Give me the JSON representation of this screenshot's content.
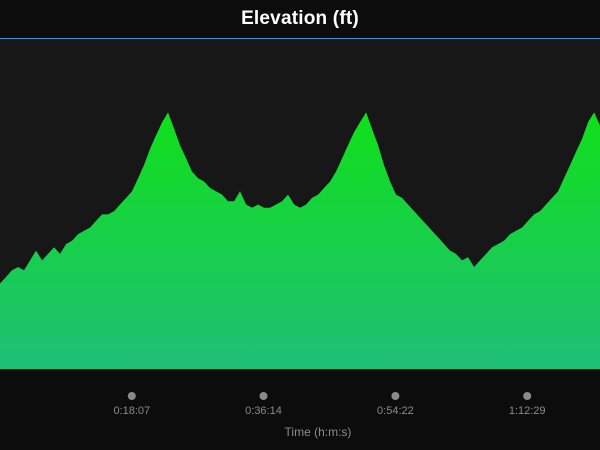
{
  "header": {
    "title": "Elevation (ft)"
  },
  "theme": {
    "fill_top": "#10e01a",
    "fill_bottom": "#1fbf78",
    "accent_line": "#3b8fd0",
    "background": "#0c0c0c",
    "plot_background": "#171717"
  },
  "chart_data": {
    "type": "area",
    "title": "Elevation (ft)",
    "xlabel": "Time (h:m:s)",
    "ylabel": "",
    "x_unit": "seconds",
    "xlim": [
      0,
      1000000000.0
    ],
    "xlim_seconds": [
      0,
      4950
    ],
    "ylim": [
      0,
      100
    ],
    "grid": false,
    "legend": "none",
    "xticks": [
      {
        "seconds": 1087,
        "label": "0:18:07"
      },
      {
        "seconds": 2174,
        "label": "0:36:14"
      },
      {
        "seconds": 3262,
        "label": "0:54:22"
      },
      {
        "seconds": 4349,
        "label": "1:12:29"
      }
    ],
    "x": [
      0,
      50,
      99,
      149,
      198,
      248,
      297,
      347,
      396,
      446,
      495,
      545,
      594,
      644,
      693,
      743,
      792,
      842,
      891,
      941,
      990,
      1040,
      1089,
      1139,
      1188,
      1238,
      1287,
      1337,
      1386,
      1436,
      1485,
      1535,
      1584,
      1634,
      1683,
      1733,
      1782,
      1832,
      1881,
      1931,
      1980,
      2030,
      2079,
      2129,
      2178,
      2228,
      2277,
      2327,
      2376,
      2426,
      2475,
      2525,
      2574,
      2624,
      2673,
      2723,
      2772,
      2822,
      2871,
      2921,
      2970,
      3020,
      3069,
      3119,
      3168,
      3218,
      3267,
      3317,
      3366,
      3416,
      3465,
      3515,
      3564,
      3614,
      3663,
      3713,
      3762,
      3812,
      3861,
      3911,
      3960,
      4010,
      4059,
      4109,
      4158,
      4208,
      4257,
      4307,
      4356,
      4406,
      4455,
      4505,
      4554,
      4604,
      4653,
      4703,
      4752,
      4802,
      4851,
      4901,
      4950
    ],
    "series": [
      {
        "values": [
          26,
          28,
          30,
          31,
          30,
          33,
          36,
          33,
          35,
          37,
          35,
          38,
          39,
          41,
          42,
          43,
          45,
          47,
          47,
          48,
          50,
          52,
          54,
          58,
          62,
          67,
          71,
          75,
          78,
          73,
          68,
          64,
          60,
          58,
          57,
          55,
          54,
          53,
          51,
          51,
          54,
          50,
          49,
          50,
          49,
          49,
          50,
          51,
          53,
          50,
          49,
          50,
          52,
          53,
          55,
          57,
          60,
          64,
          68,
          72,
          75,
          78,
          73,
          68,
          62,
          57,
          53,
          52,
          50,
          48,
          46,
          44,
          42,
          40,
          38,
          36,
          35,
          33,
          34,
          31,
          33,
          35,
          37,
          38,
          39,
          41,
          42,
          43,
          45,
          47,
          48,
          50,
          52,
          54,
          58,
          62,
          66,
          70,
          75,
          78,
          74
        ]
      }
    ]
  }
}
